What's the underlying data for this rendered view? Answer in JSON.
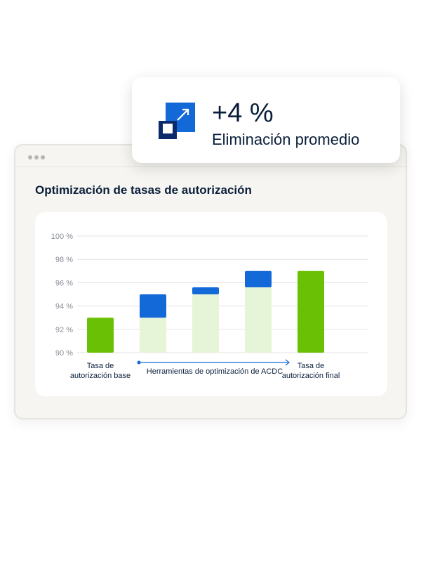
{
  "callout": {
    "value": "+4 %",
    "label": "Eliminación promedio",
    "icon": "expand-arrow-icon"
  },
  "colors": {
    "green": "#6ac004",
    "light_green": "#e6f4d8",
    "blue": "#1469d8",
    "navy": "#0b1f3b"
  },
  "chart_data": {
    "type": "bar",
    "title": "Optimización de tasas de autorización",
    "ylim": [
      90,
      100
    ],
    "yticks": [
      "90 %",
      "92 %",
      "94 %",
      "96 %",
      "98 %",
      "100 %"
    ],
    "grid": true,
    "bars": [
      {
        "base": 0,
        "value": 93.0,
        "kind": "total"
      },
      {
        "base": 93.0,
        "value": 95.0,
        "kind": "step"
      },
      {
        "base": 95.0,
        "value": 95.6,
        "kind": "step"
      },
      {
        "base": 95.6,
        "value": 97.0,
        "kind": "step"
      },
      {
        "base": 0,
        "value": 97.0,
        "kind": "total"
      }
    ],
    "xlabels": {
      "base": "Tasa de autorización base",
      "tools": "Herramientas de optimización de ACDC",
      "final": "Tasa de autorización final"
    }
  }
}
